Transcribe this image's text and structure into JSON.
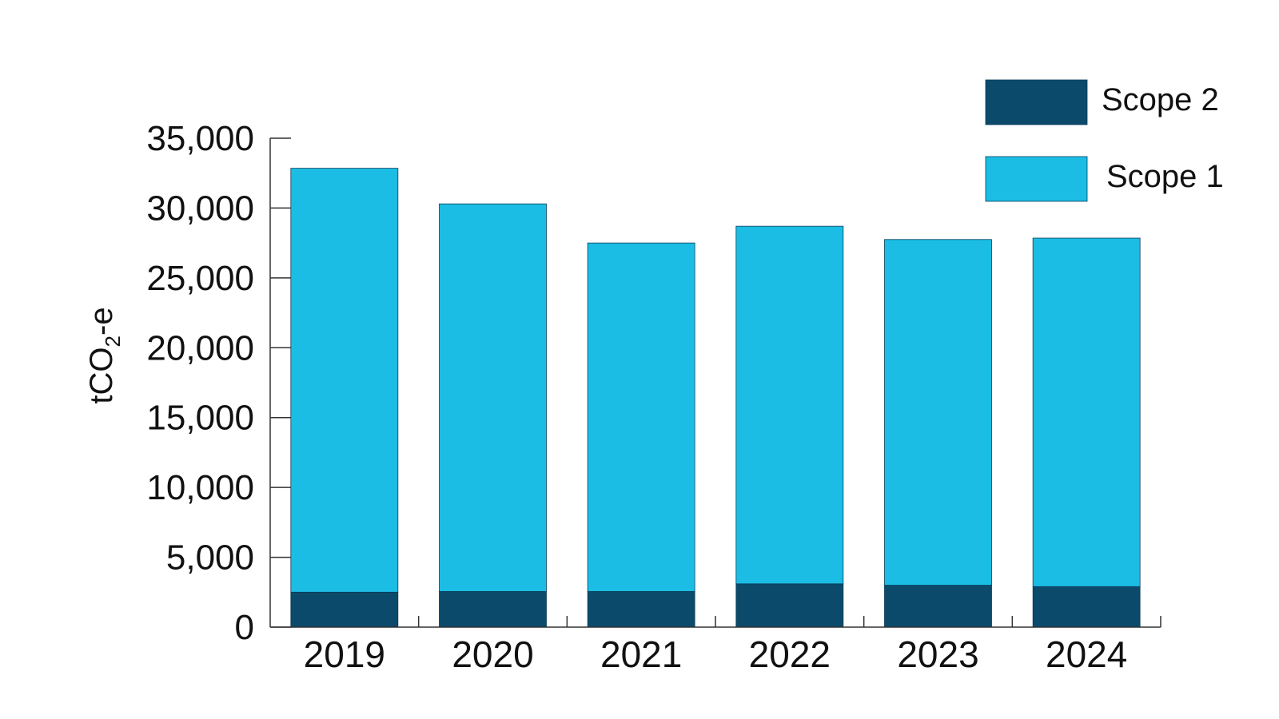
{
  "chart_data": {
    "type": "bar",
    "stacked": true,
    "categories": [
      "2019",
      "2020",
      "2021",
      "2022",
      "2023",
      "2024"
    ],
    "series": [
      {
        "name": "Scope 2",
        "color": "#0c4a6b",
        "values": [
          2500,
          2550,
          2550,
          3100,
          3000,
          2900
        ]
      },
      {
        "name": "Scope 1",
        "color": "#1cbde4",
        "values": [
          30350,
          27750,
          24950,
          25600,
          24750,
          24950
        ]
      }
    ],
    "title": "",
    "xlabel": "",
    "ylabel": {
      "main": "tCO",
      "sub": "2",
      "suffix": "-e"
    },
    "ylim": [
      0,
      35000
    ],
    "yticks": [
      0,
      5000,
      10000,
      15000,
      20000,
      25000,
      30000,
      35000
    ],
    "ytick_labels": [
      "0",
      "5,000",
      "10,000",
      "15,000",
      "20,000",
      "25,000",
      "30,000",
      "35,000"
    ],
    "grid": false,
    "legend_position": "top-right",
    "legend_order": [
      "Scope 2",
      "Scope 1"
    ]
  }
}
